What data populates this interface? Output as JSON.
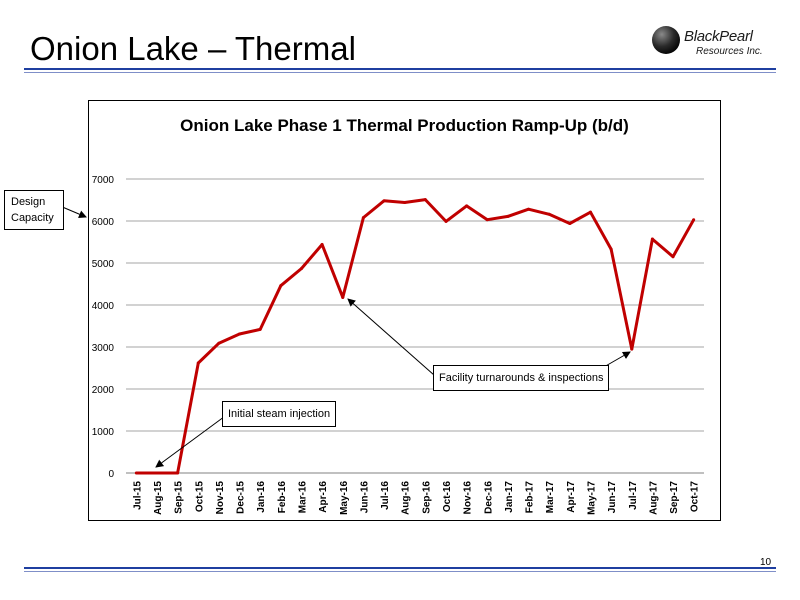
{
  "slide": {
    "title": "Onion Lake – Thermal",
    "page_number": "10",
    "logo": {
      "line1": "BlackPearl",
      "line2": "Resources Inc."
    }
  },
  "colors": {
    "rule": "#1f3fa0",
    "line": "#c00000",
    "grid": "#a6a6a6"
  },
  "annotations": {
    "design_capacity": "Design Capacity",
    "steam": "Initial steam injection",
    "facility": "Facility turnarounds & inspections"
  },
  "chart_data": {
    "type": "line",
    "title": "Onion Lake Phase 1 Thermal Production Ramp-Up (b/d)",
    "xlabel": "",
    "ylabel": "",
    "ylim": [
      0,
      7000
    ],
    "yticks": [
      0,
      1000,
      2000,
      3000,
      4000,
      5000,
      6000,
      7000
    ],
    "grid": true,
    "legend": "none",
    "categories": [
      "Jul-15",
      "Aug-15",
      "Sep-15",
      "Oct-15",
      "Nov-15",
      "Dec-15",
      "Jan-16",
      "Feb-16",
      "Mar-16",
      "Apr-16",
      "May-16",
      "Jun-16",
      "Jul-16",
      "Aug-16",
      "Sep-16",
      "Oct-16",
      "Nov-16",
      "Dec-16",
      "Jan-17",
      "Feb-17",
      "Mar-17",
      "Apr-17",
      "May-17",
      "Jun-17",
      "Jul-17",
      "Aug-17",
      "Sep-17",
      "Oct-17"
    ],
    "values": [
      0,
      0,
      0,
      2620,
      3090,
      3310,
      3420,
      4460,
      4870,
      5440,
      4180,
      6080,
      6480,
      6440,
      6510,
      5990,
      6360,
      6030,
      6110,
      6280,
      6160,
      5940,
      6210,
      5330,
      2950,
      5570,
      5150,
      6030
    ]
  }
}
